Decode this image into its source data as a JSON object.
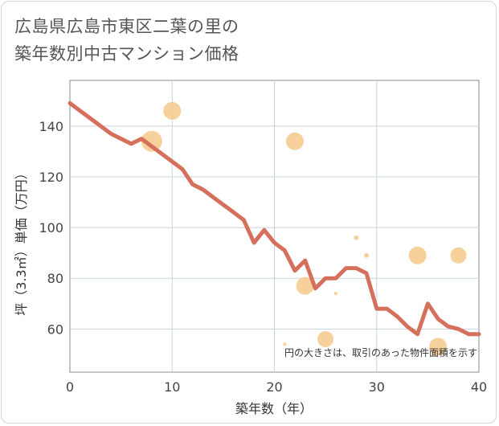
{
  "title_lines": [
    "広島県広島市東区二葉の里の",
    "築年数別中古マンション価格"
  ],
  "chart_data": {
    "type": "scatter+line",
    "xlabel": "築年数（年）",
    "ylabel": "坪（3.3㎡）単価（万円）",
    "xlim": [
      0,
      40
    ],
    "ylim": [
      43,
      158
    ],
    "xticks": [
      0,
      10,
      20,
      30,
      40
    ],
    "yticks": [
      60,
      80,
      100,
      120,
      140
    ],
    "grid": true,
    "note": "円の大きさは、取引のあった物件面積を示す",
    "line_color": "#d4705c",
    "bubble_color": "#f6c98a",
    "line": {
      "x": [
        0,
        1,
        2,
        3,
        4,
        5,
        6,
        7,
        8,
        9,
        10,
        11,
        12,
        13,
        14,
        15,
        16,
        17,
        18,
        19,
        20,
        21,
        22,
        23,
        24,
        25,
        26,
        27,
        28,
        29,
        30,
        31,
        32,
        33,
        34,
        35,
        36,
        37,
        38,
        39,
        40
      ],
      "y": [
        149,
        146,
        143,
        140,
        137,
        135,
        133,
        135,
        132,
        129,
        126,
        123,
        117,
        115,
        112,
        109,
        106,
        103,
        94,
        99,
        94,
        91,
        83,
        87,
        76,
        80,
        80,
        84,
        84,
        82,
        68,
        68,
        65,
        61,
        58,
        70,
        64,
        61,
        60,
        58,
        58
      ]
    },
    "bubbles": [
      {
        "x": 8,
        "y": 134,
        "r": 13
      },
      {
        "x": 10,
        "y": 146,
        "r": 11
      },
      {
        "x": 22,
        "y": 134,
        "r": 11
      },
      {
        "x": 23,
        "y": 77,
        "r": 11
      },
      {
        "x": 25,
        "y": 56,
        "r": 10
      },
      {
        "x": 21,
        "y": 54,
        "r": 2
      },
      {
        "x": 26,
        "y": 74,
        "r": 2
      },
      {
        "x": 28,
        "y": 96,
        "r": 3
      },
      {
        "x": 29,
        "y": 89,
        "r": 3
      },
      {
        "x": 34,
        "y": 89,
        "r": 11
      },
      {
        "x": 36,
        "y": 53,
        "r": 11
      },
      {
        "x": 38,
        "y": 89,
        "r": 10
      }
    ]
  }
}
